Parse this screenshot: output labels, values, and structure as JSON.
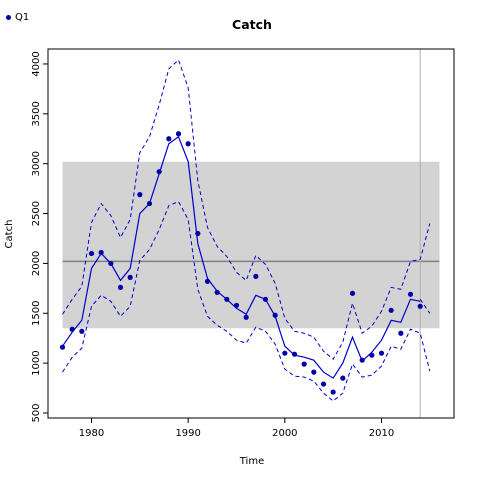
{
  "chart_data": {
    "type": "line",
    "title": "Catch",
    "xlabel": "Time",
    "ylabel": "Catch",
    "xlim": [
      1975.5,
      2017.5
    ],
    "ylim": [
      450,
      4150
    ],
    "xticks": [
      1980,
      1990,
      2000,
      2010
    ],
    "yticks": [
      500,
      1000,
      1500,
      2000,
      2500,
      3000,
      3500,
      4000
    ],
    "legend": {
      "label": "Q1",
      "placement": "top-left"
    },
    "band": {
      "x": [
        1977,
        2016
      ],
      "y": [
        1350,
        3020
      ]
    },
    "hline": 2020,
    "vline": 2014,
    "colors": {
      "series": "#0000cc",
      "points": "#0000aa",
      "band": "#d3d3d3",
      "hline": "#808080",
      "vline": "#b0b0b0"
    },
    "observed": {
      "x": [
        1977,
        1978,
        1979,
        1980,
        1981,
        1982,
        1983,
        1984,
        1985,
        1986,
        1987,
        1988,
        1989,
        1990,
        1991,
        1992,
        1993,
        1994,
        1995,
        1996,
        1997,
        1998,
        1999,
        2000,
        2001,
        2002,
        2003,
        2004,
        2005,
        2006,
        2007,
        2008,
        2009,
        2010,
        2011,
        2012,
        2013,
        2014
      ],
      "y": [
        1160,
        1340,
        1320,
        2100,
        2110,
        2000,
        1760,
        1860,
        2690,
        2600,
        2920,
        3250,
        3300,
        3200,
        2300,
        1820,
        1710,
        1640,
        1580,
        1460,
        1870,
        1640,
        1480,
        1100,
        1090,
        990,
        910,
        790,
        710,
        850,
        1700,
        1030,
        1080,
        1100,
        1530,
        1300,
        1690,
        1570
      ]
    },
    "fit": {
      "x": [
        1977,
        1978,
        1979,
        1980,
        1981,
        1982,
        1983,
        1984,
        1985,
        1986,
        1987,
        1988,
        1989,
        1990,
        1991,
        1992,
        1993,
        1994,
        1995,
        1996,
        1997,
        1998,
        1999,
        2000,
        2001,
        2002,
        2003,
        2004,
        2005,
        2006,
        2007,
        2008,
        2009,
        2010,
        2011,
        2012,
        2013,
        2014
      ],
      "y": [
        1170,
        1310,
        1430,
        1950,
        2100,
        2000,
        1830,
        1950,
        2500,
        2600,
        2900,
        3200,
        3270,
        3020,
        2200,
        1850,
        1720,
        1640,
        1550,
        1490,
        1680,
        1640,
        1470,
        1170,
        1080,
        1060,
        1030,
        910,
        850,
        1000,
        1260,
        1020,
        1110,
        1230,
        1430,
        1410,
        1640,
        1620
      ]
    },
    "upper": {
      "x": [
        1977,
        1978,
        1979,
        1980,
        1981,
        1982,
        1983,
        1984,
        1985,
        1986,
        1987,
        1988,
        1989,
        1990,
        1991,
        1992,
        1993,
        1994,
        1995,
        1996,
        1997,
        1998,
        1999,
        2000,
        2001,
        2002,
        2003,
        2004,
        2005,
        2006,
        2007,
        2008,
        2009,
        2010,
        2011,
        2012,
        2013,
        2014,
        2015
      ],
      "y": [
        1490,
        1640,
        1770,
        2410,
        2600,
        2480,
        2260,
        2440,
        3110,
        3270,
        3590,
        3950,
        4040,
        3760,
        2830,
        2360,
        2170,
        2070,
        1910,
        1830,
        2080,
        1990,
        1800,
        1450,
        1320,
        1300,
        1260,
        1120,
        1040,
        1210,
        1600,
        1300,
        1370,
        1520,
        1760,
        1740,
        2020,
        2040,
        2400
      ]
    },
    "lower": {
      "x": [
        1977,
        1978,
        1979,
        1980,
        1981,
        1982,
        1983,
        1984,
        1985,
        1986,
        1987,
        1988,
        1989,
        1990,
        1991,
        1992,
        1993,
        1994,
        1995,
        1996,
        1997,
        1998,
        1999,
        2000,
        2001,
        2002,
        2003,
        2004,
        2005,
        2006,
        2007,
        2008,
        2009,
        2010,
        2011,
        2012,
        2013,
        2014,
        2015
      ],
      "y": [
        910,
        1060,
        1150,
        1570,
        1680,
        1620,
        1470,
        1570,
        2030,
        2140,
        2340,
        2580,
        2620,
        2440,
        1740,
        1470,
        1380,
        1320,
        1230,
        1200,
        1360,
        1320,
        1190,
        940,
        870,
        860,
        820,
        700,
        620,
        700,
        990,
        860,
        880,
        970,
        1170,
        1140,
        1340,
        1300,
        920
      ]
    },
    "upper_tail": {
      "x": [
        2014,
        2015
      ],
      "y": [
        1640,
        1500
      ]
    }
  }
}
